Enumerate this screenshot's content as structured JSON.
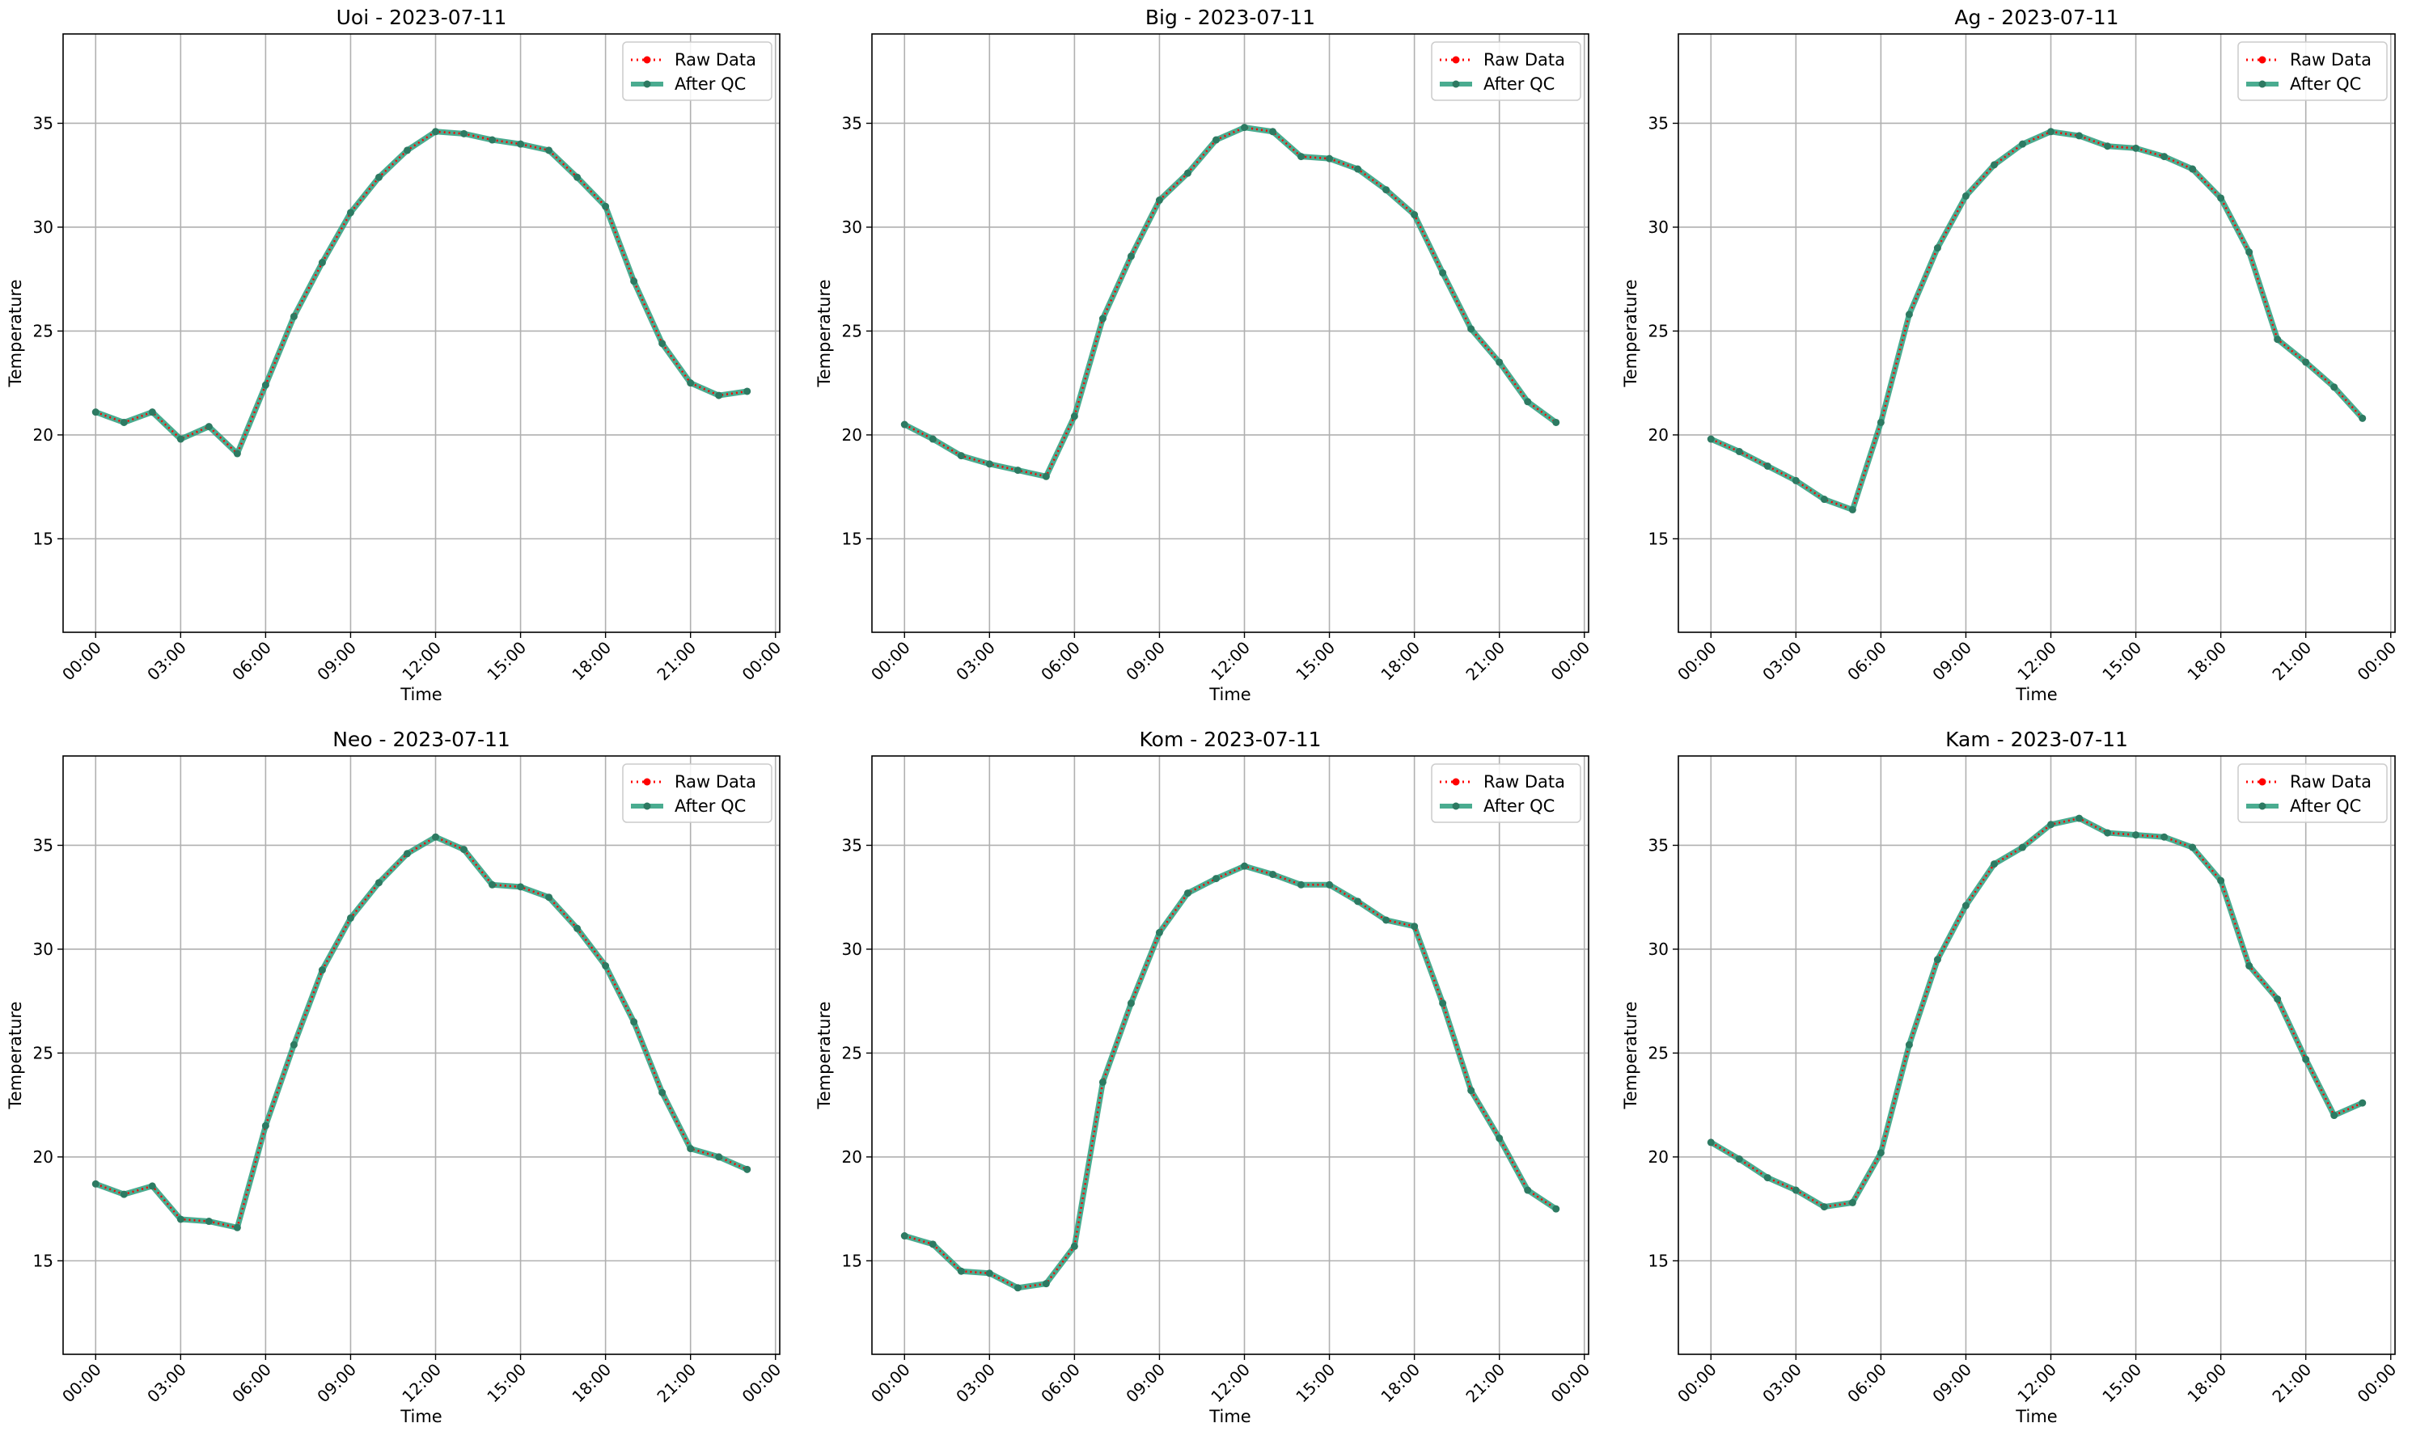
{
  "chart_data": [
    {
      "type": "line",
      "title": "Uoi - 2023-07-11",
      "xlabel": "Time",
      "ylabel": "Temperature",
      "x": [
        "00:00",
        "01:00",
        "02:00",
        "03:00",
        "04:00",
        "05:00",
        "06:00",
        "07:00",
        "08:00",
        "09:00",
        "10:00",
        "11:00",
        "12:00",
        "13:00",
        "14:00",
        "15:00",
        "16:00",
        "17:00",
        "18:00",
        "19:00",
        "20:00",
        "21:00",
        "22:00",
        "23:00"
      ],
      "xticks": [
        "00:00",
        "03:00",
        "06:00",
        "09:00",
        "12:00",
        "15:00",
        "18:00",
        "21:00",
        "00:00"
      ],
      "ylim": [
        10.5,
        39.3
      ],
      "yticks": [
        15,
        20,
        25,
        30,
        35
      ],
      "grid": true,
      "legend_position": "top-right",
      "series": [
        {
          "name": "Raw Data",
          "color": "#ff0000",
          "style": "dotted",
          "values": [
            21.1,
            20.6,
            21.1,
            19.8,
            20.4,
            19.1,
            22.4,
            25.7,
            28.3,
            30.7,
            32.4,
            33.7,
            34.6,
            34.5,
            34.2,
            34.0,
            33.7,
            32.4,
            31.0,
            27.4,
            24.4,
            22.5,
            21.9,
            22.1
          ]
        },
        {
          "name": "After QC",
          "color": "#2a9d7c",
          "style": "solid",
          "values": [
            21.1,
            20.6,
            21.1,
            19.8,
            20.4,
            19.1,
            22.4,
            25.7,
            28.3,
            30.7,
            32.4,
            33.7,
            34.6,
            34.5,
            34.2,
            34.0,
            33.7,
            32.4,
            31.0,
            27.4,
            24.4,
            22.5,
            21.9,
            22.1
          ]
        }
      ]
    },
    {
      "type": "line",
      "title": "Big - 2023-07-11",
      "xlabel": "Time",
      "ylabel": "Temperature",
      "x": [
        "00:00",
        "01:00",
        "02:00",
        "03:00",
        "04:00",
        "05:00",
        "06:00",
        "07:00",
        "08:00",
        "09:00",
        "10:00",
        "11:00",
        "12:00",
        "13:00",
        "14:00",
        "15:00",
        "16:00",
        "17:00",
        "18:00",
        "19:00",
        "20:00",
        "21:00",
        "22:00",
        "23:00"
      ],
      "xticks": [
        "00:00",
        "03:00",
        "06:00",
        "09:00",
        "12:00",
        "15:00",
        "18:00",
        "21:00",
        "00:00"
      ],
      "ylim": [
        10.5,
        39.3
      ],
      "yticks": [
        15,
        20,
        25,
        30,
        35
      ],
      "grid": true,
      "legend_position": "top-right",
      "series": [
        {
          "name": "Raw Data",
          "color": "#ff0000",
          "style": "dotted",
          "values": [
            20.5,
            19.8,
            19.0,
            18.6,
            18.3,
            18.0,
            20.9,
            25.6,
            28.6,
            31.3,
            32.6,
            34.2,
            34.8,
            34.6,
            33.4,
            33.3,
            32.8,
            31.8,
            30.6,
            27.8,
            25.1,
            23.5,
            21.6,
            20.6
          ]
        },
        {
          "name": "After QC",
          "color": "#2a9d7c",
          "style": "solid",
          "values": [
            20.5,
            19.8,
            19.0,
            18.6,
            18.3,
            18.0,
            20.9,
            25.6,
            28.6,
            31.3,
            32.6,
            34.2,
            34.8,
            34.6,
            33.4,
            33.3,
            32.8,
            31.8,
            30.6,
            27.8,
            25.1,
            23.5,
            21.6,
            20.6
          ]
        }
      ]
    },
    {
      "type": "line",
      "title": "Ag - 2023-07-11",
      "xlabel": "Time",
      "ylabel": "Temperature",
      "x": [
        "00:00",
        "01:00",
        "02:00",
        "03:00",
        "04:00",
        "05:00",
        "06:00",
        "07:00",
        "08:00",
        "09:00",
        "10:00",
        "11:00",
        "12:00",
        "13:00",
        "14:00",
        "15:00",
        "16:00",
        "17:00",
        "18:00",
        "19:00",
        "20:00",
        "21:00",
        "22:00",
        "23:00"
      ],
      "xticks": [
        "00:00",
        "03:00",
        "06:00",
        "09:00",
        "12:00",
        "15:00",
        "18:00",
        "21:00",
        "00:00"
      ],
      "ylim": [
        10.5,
        39.3
      ],
      "yticks": [
        15,
        20,
        25,
        30,
        35
      ],
      "grid": true,
      "legend_position": "top-right",
      "series": [
        {
          "name": "Raw Data",
          "color": "#ff0000",
          "style": "dotted",
          "values": [
            19.8,
            19.2,
            18.5,
            17.8,
            16.9,
            16.4,
            20.6,
            25.8,
            29.0,
            31.5,
            33.0,
            34.0,
            34.6,
            34.4,
            33.9,
            33.8,
            33.4,
            32.8,
            31.4,
            28.8,
            24.6,
            23.5,
            22.3,
            20.8
          ]
        },
        {
          "name": "After QC",
          "color": "#2a9d7c",
          "style": "solid",
          "values": [
            19.8,
            19.2,
            18.5,
            17.8,
            16.9,
            16.4,
            20.6,
            25.8,
            29.0,
            31.5,
            33.0,
            34.0,
            34.6,
            34.4,
            33.9,
            33.8,
            33.4,
            32.8,
            31.4,
            28.8,
            24.6,
            23.5,
            22.3,
            20.8
          ]
        }
      ]
    },
    {
      "type": "line",
      "title": "Neo - 2023-07-11",
      "xlabel": "Time",
      "ylabel": "Temperature",
      "x": [
        "00:00",
        "01:00",
        "02:00",
        "03:00",
        "04:00",
        "05:00",
        "06:00",
        "07:00",
        "08:00",
        "09:00",
        "10:00",
        "11:00",
        "12:00",
        "13:00",
        "14:00",
        "15:00",
        "16:00",
        "17:00",
        "18:00",
        "19:00",
        "20:00",
        "21:00",
        "22:00",
        "23:00"
      ],
      "xticks": [
        "00:00",
        "03:00",
        "06:00",
        "09:00",
        "12:00",
        "15:00",
        "18:00",
        "21:00",
        "00:00"
      ],
      "ylim": [
        10.5,
        39.3
      ],
      "yticks": [
        15,
        20,
        25,
        30,
        35
      ],
      "grid": true,
      "legend_position": "top-right",
      "series": [
        {
          "name": "Raw Data",
          "color": "#ff0000",
          "style": "dotted",
          "values": [
            18.7,
            18.2,
            18.6,
            17.0,
            16.9,
            16.6,
            21.5,
            25.4,
            29.0,
            31.5,
            33.2,
            34.6,
            35.4,
            34.8,
            33.1,
            33.0,
            32.5,
            31.0,
            29.2,
            26.5,
            23.1,
            20.4,
            20.0,
            19.4
          ]
        },
        {
          "name": "After QC",
          "color": "#2a9d7c",
          "style": "solid",
          "values": [
            18.7,
            18.2,
            18.6,
            17.0,
            16.9,
            16.6,
            21.5,
            25.4,
            29.0,
            31.5,
            33.2,
            34.6,
            35.4,
            34.8,
            33.1,
            33.0,
            32.5,
            31.0,
            29.2,
            26.5,
            23.1,
            20.4,
            20.0,
            19.4
          ]
        }
      ]
    },
    {
      "type": "line",
      "title": "Kom - 2023-07-11",
      "xlabel": "Time",
      "ylabel": "Temperature",
      "x": [
        "00:00",
        "01:00",
        "02:00",
        "03:00",
        "04:00",
        "05:00",
        "06:00",
        "07:00",
        "08:00",
        "09:00",
        "10:00",
        "11:00",
        "12:00",
        "13:00",
        "14:00",
        "15:00",
        "16:00",
        "17:00",
        "18:00",
        "19:00",
        "20:00",
        "21:00",
        "22:00",
        "23:00"
      ],
      "xticks": [
        "00:00",
        "03:00",
        "06:00",
        "09:00",
        "12:00",
        "15:00",
        "18:00",
        "21:00",
        "00:00"
      ],
      "ylim": [
        10.5,
        39.3
      ],
      "yticks": [
        15,
        20,
        25,
        30,
        35
      ],
      "grid": true,
      "legend_position": "top-right",
      "series": [
        {
          "name": "Raw Data",
          "color": "#ff0000",
          "style": "dotted",
          "values": [
            16.2,
            15.8,
            14.5,
            14.4,
            13.7,
            13.9,
            15.7,
            23.6,
            27.4,
            30.8,
            32.7,
            33.4,
            34.0,
            33.6,
            33.1,
            33.1,
            32.3,
            31.4,
            31.1,
            27.4,
            23.2,
            20.9,
            18.4,
            17.5
          ]
        },
        {
          "name": "After QC",
          "color": "#2a9d7c",
          "style": "solid",
          "values": [
            16.2,
            15.8,
            14.5,
            14.4,
            13.7,
            13.9,
            15.7,
            23.6,
            27.4,
            30.8,
            32.7,
            33.4,
            34.0,
            33.6,
            33.1,
            33.1,
            32.3,
            31.4,
            31.1,
            27.4,
            23.2,
            20.9,
            18.4,
            17.5
          ]
        }
      ]
    },
    {
      "type": "line",
      "title": "Kam - 2023-07-11",
      "xlabel": "Time",
      "ylabel": "Temperature",
      "x": [
        "00:00",
        "01:00",
        "02:00",
        "03:00",
        "04:00",
        "05:00",
        "06:00",
        "07:00",
        "08:00",
        "09:00",
        "10:00",
        "11:00",
        "12:00",
        "13:00",
        "14:00",
        "15:00",
        "16:00",
        "17:00",
        "18:00",
        "19:00",
        "20:00",
        "21:00",
        "22:00",
        "23:00"
      ],
      "xticks": [
        "00:00",
        "03:00",
        "06:00",
        "09:00",
        "12:00",
        "15:00",
        "18:00",
        "21:00",
        "00:00"
      ],
      "ylim": [
        10.5,
        39.3
      ],
      "yticks": [
        15,
        20,
        25,
        30,
        35
      ],
      "grid": true,
      "legend_position": "top-right",
      "series": [
        {
          "name": "Raw Data",
          "color": "#ff0000",
          "style": "dotted",
          "values": [
            20.7,
            19.9,
            19.0,
            18.4,
            17.6,
            17.8,
            20.2,
            25.4,
            29.5,
            32.1,
            34.1,
            34.9,
            36.0,
            36.3,
            35.6,
            35.5,
            35.4,
            34.9,
            33.3,
            29.2,
            27.6,
            24.7,
            22.0,
            22.6
          ]
        },
        {
          "name": "After QC",
          "color": "#2a9d7c",
          "style": "solid",
          "values": [
            20.7,
            19.9,
            19.0,
            18.4,
            17.6,
            17.8,
            20.2,
            25.4,
            29.5,
            32.1,
            34.1,
            34.9,
            36.0,
            36.3,
            35.6,
            35.5,
            35.4,
            34.9,
            33.3,
            29.2,
            27.6,
            24.7,
            22.0,
            22.6
          ]
        }
      ]
    }
  ]
}
